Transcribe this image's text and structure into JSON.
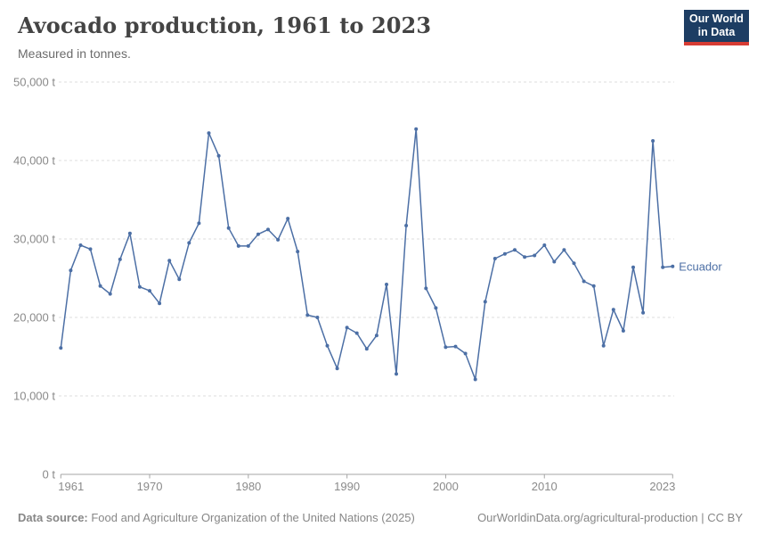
{
  "header": {
    "title": "Avocado production, 1961 to 2023",
    "subtitle": "Measured in tonnes.",
    "logo": {
      "line1": "Our World",
      "line2": "in Data",
      "bg": "#1d3d63",
      "accent": "#d73c34"
    }
  },
  "chart_data": {
    "type": "line",
    "title": "Avocado production, 1961 to 2023",
    "unit": "tonnes",
    "xlim": [
      1961,
      2023
    ],
    "ylim": [
      0,
      50000
    ],
    "grid": true,
    "x_ticks": [
      1961,
      1970,
      1980,
      1990,
      2000,
      2010,
      2023
    ],
    "y_ticks": [
      0,
      10000,
      20000,
      30000,
      40000,
      50000
    ],
    "y_tick_labels": [
      "0 t",
      "10,000 t",
      "20,000 t",
      "30,000 t",
      "40,000 t",
      "50,000 t"
    ],
    "legend_position": "end-of-line",
    "series": [
      {
        "name": "Ecuador",
        "color": "#4C6FA5",
        "x": [
          1961,
          1962,
          1963,
          1964,
          1965,
          1966,
          1967,
          1968,
          1969,
          1970,
          1971,
          1972,
          1973,
          1974,
          1975,
          1976,
          1977,
          1978,
          1979,
          1980,
          1981,
          1982,
          1983,
          1984,
          1985,
          1986,
          1987,
          1988,
          1989,
          1990,
          1991,
          1992,
          1993,
          1994,
          1995,
          1996,
          1997,
          1998,
          1999,
          2000,
          2001,
          2002,
          2003,
          2004,
          2005,
          2006,
          2007,
          2008,
          2009,
          2010,
          2011,
          2012,
          2013,
          2014,
          2015,
          2016,
          2017,
          2018,
          2019,
          2020,
          2021,
          2022,
          2023
        ],
        "values": [
          16100,
          26000,
          29200,
          28700,
          24000,
          23000,
          27400,
          30700,
          23900,
          23400,
          21800,
          27250,
          24850,
          29500,
          32000,
          43500,
          40600,
          31400,
          29100,
          29100,
          30600,
          31200,
          29900,
          32600,
          28400,
          20300,
          20000,
          16400,
          13500,
          18700,
          18000,
          16000,
          17700,
          24200,
          12800,
          31700,
          44000,
          23700,
          21200,
          16200,
          16300,
          15400,
          12100,
          22000,
          27500,
          28100,
          28600,
          27700,
          27900,
          29200,
          27100,
          28600,
          26900,
          24600,
          24000,
          16400,
          21000,
          18300,
          26400,
          20600,
          42500,
          26400,
          26500
        ]
      }
    ]
  },
  "footer": {
    "source_label": "Data source:",
    "source_text": " Food and Agriculture Organization of the United Nations (2025)",
    "attribution": "OurWorldinData.org/agricultural-production | CC BY"
  }
}
